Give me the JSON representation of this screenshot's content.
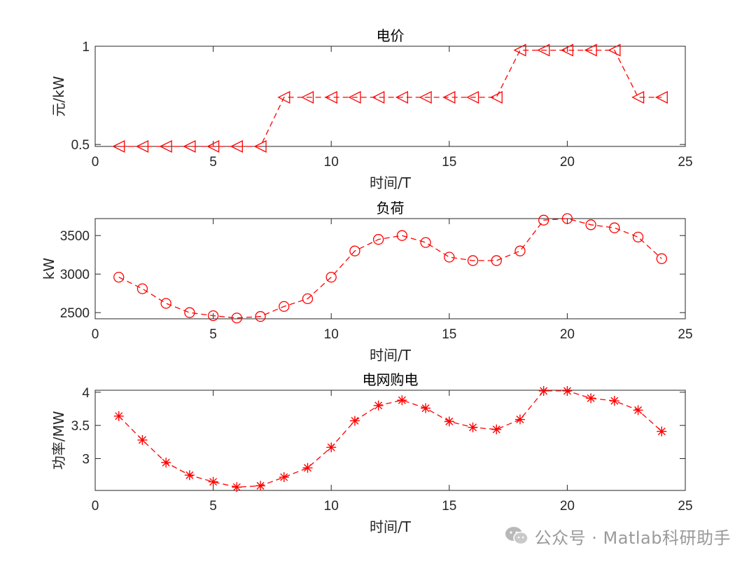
{
  "watermark": {
    "text": "公众号 · Matlab科研助手",
    "icon": "wechat-icon",
    "color": "#9a9a9a"
  },
  "style": {
    "line_color": "#ff0000",
    "axes_color": "#262626"
  },
  "chart_data": [
    {
      "type": "line",
      "title": "电价",
      "xlabel": "时间/T",
      "ylabel": "元/kW",
      "xlim": [
        0,
        25
      ],
      "ylim": [
        0.49,
        1.0
      ],
      "xticks": [
        0,
        5,
        10,
        15,
        20,
        25
      ],
      "yticks": [
        0.5,
        1
      ],
      "ytick_labels": [
        "0.5",
        "1"
      ],
      "marker": "triangle-left",
      "line_style": "dashed",
      "grid": false,
      "series": [
        {
          "x": [
            1,
            2,
            3,
            4,
            5,
            6,
            7,
            8,
            9,
            10,
            11,
            12,
            13,
            14,
            15,
            16,
            17,
            18,
            19,
            20,
            21,
            22,
            23,
            24
          ],
          "y": [
            0.49,
            0.49,
            0.49,
            0.49,
            0.49,
            0.49,
            0.49,
            0.74,
            0.74,
            0.74,
            0.74,
            0.74,
            0.74,
            0.74,
            0.74,
            0.74,
            0.74,
            0.98,
            0.98,
            0.98,
            0.98,
            0.98,
            0.74,
            0.74
          ]
        }
      ]
    },
    {
      "type": "line",
      "title": "负荷",
      "xlabel": "时间/T",
      "ylabel": "kW",
      "xlim": [
        0,
        25
      ],
      "ylim": [
        2420,
        3720
      ],
      "xticks": [
        0,
        5,
        10,
        15,
        20,
        25
      ],
      "yticks": [
        2500,
        3000,
        3500
      ],
      "ytick_labels": [
        "2500",
        "3000",
        "3500"
      ],
      "marker": "circle",
      "line_style": "dashed",
      "grid": false,
      "series": [
        {
          "x": [
            1,
            2,
            3,
            4,
            5,
            6,
            7,
            8,
            9,
            10,
            11,
            12,
            13,
            14,
            15,
            16,
            17,
            18,
            19,
            20,
            21,
            22,
            23,
            24
          ],
          "y": [
            2960,
            2810,
            2620,
            2500,
            2460,
            2430,
            2450,
            2580,
            2680,
            2960,
            3300,
            3450,
            3500,
            3410,
            3220,
            3175,
            3175,
            3300,
            3700,
            3720,
            3640,
            3600,
            3480,
            3200
          ]
        }
      ]
    },
    {
      "type": "line",
      "title": "电网购电",
      "xlabel": "时间/T",
      "ylabel": "功率/MW",
      "xlim": [
        0,
        25
      ],
      "ylim": [
        2.52,
        4.03
      ],
      "xticks": [
        0,
        5,
        10,
        15,
        20,
        25
      ],
      "yticks": [
        3,
        3.5,
        4
      ],
      "ytick_labels": [
        "3",
        "3.5",
        "4"
      ],
      "marker": "asterisk",
      "line_style": "dashed",
      "grid": false,
      "series": [
        {
          "x": [
            1,
            2,
            3,
            4,
            5,
            6,
            7,
            8,
            9,
            10,
            11,
            12,
            13,
            14,
            15,
            16,
            17,
            18,
            19,
            20,
            21,
            22,
            23,
            24
          ],
          "y": [
            3.64,
            3.28,
            2.94,
            2.75,
            2.65,
            2.57,
            2.59,
            2.72,
            2.86,
            3.17,
            3.57,
            3.8,
            3.88,
            3.76,
            3.56,
            3.47,
            3.44,
            3.59,
            4.02,
            4.02,
            3.91,
            3.87,
            3.73,
            3.41
          ]
        }
      ]
    }
  ]
}
